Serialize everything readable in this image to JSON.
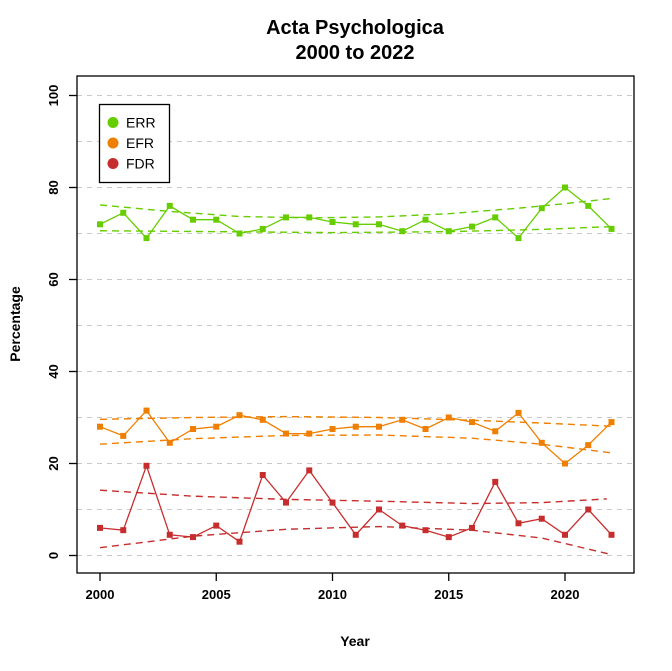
{
  "title": {
    "line1": "Acta Psychologica",
    "line2": "2000 to 2022"
  },
  "chart_data": {
    "type": "line",
    "xlabel": "Year",
    "ylabel": "Percentage",
    "x": [
      2000,
      2001,
      2002,
      2003,
      2004,
      2005,
      2006,
      2007,
      2008,
      2009,
      2010,
      2011,
      2012,
      2013,
      2014,
      2015,
      2016,
      2017,
      2018,
      2019,
      2020,
      2021,
      2022
    ],
    "xticks": [
      2000,
      2005,
      2010,
      2015,
      2020
    ],
    "yticks": [
      0,
      20,
      40,
      60,
      80,
      100
    ],
    "ylim": [
      0,
      100
    ],
    "grid": {
      "horizontal_every": 10,
      "style": "dashed",
      "color": "#c9c9c9"
    },
    "legend": {
      "position": "top-left",
      "entries": [
        "ERR",
        "EFR",
        "FDR"
      ]
    },
    "series": [
      {
        "name": "ERR",
        "color": "#66CD00",
        "marker": "square",
        "values": [
          72,
          74.5,
          69,
          76,
          73,
          73,
          70,
          71,
          73.5,
          73.5,
          72.5,
          72,
          72,
          70.5,
          73,
          70.5,
          71.5,
          73.5,
          69,
          75.5,
          80,
          76,
          71
        ],
        "trend_upper": [
          [
            2000,
            76.2
          ],
          [
            2003,
            74.8
          ],
          [
            2006,
            73.7
          ],
          [
            2009,
            73.4
          ],
          [
            2012,
            73.6
          ],
          [
            2015,
            74.3
          ],
          [
            2018,
            75.5
          ],
          [
            2020,
            76.5
          ],
          [
            2022,
            77.6
          ]
        ],
        "trend_lower": [
          [
            2000,
            70.6
          ],
          [
            2005,
            70.4
          ],
          [
            2010,
            70.2
          ],
          [
            2015,
            70.4
          ],
          [
            2019,
            70.9
          ],
          [
            2022,
            71.5
          ]
        ]
      },
      {
        "name": "EFR",
        "color": "#EE7F00",
        "marker": "square",
        "values": [
          28,
          26,
          31.5,
          24.5,
          27.5,
          28,
          30.5,
          29.5,
          26.5,
          26.5,
          27.5,
          28,
          28,
          29.5,
          27.5,
          30,
          29,
          27,
          31,
          24.5,
          20,
          24,
          29
        ],
        "trend_upper": [
          [
            2000,
            29.6
          ],
          [
            2004,
            30.0
          ],
          [
            2008,
            30.2
          ],
          [
            2012,
            30.0
          ],
          [
            2016,
            29.4
          ],
          [
            2019,
            28.8
          ],
          [
            2022,
            28.1
          ]
        ],
        "trend_lower": [
          [
            2000,
            24.2
          ],
          [
            2004,
            25.4
          ],
          [
            2008,
            26.1
          ],
          [
            2012,
            26.2
          ],
          [
            2016,
            25.5
          ],
          [
            2019,
            24.2
          ],
          [
            2022,
            22.3
          ]
        ]
      },
      {
        "name": "FDR",
        "color": "#C62E2E",
        "marker": "square",
        "values": [
          6,
          5.5,
          19.5,
          4.5,
          4,
          6.5,
          3,
          17.5,
          11.5,
          18.5,
          11.5,
          4.5,
          10,
          6.5,
          5.5,
          4,
          6,
          16,
          7,
          8,
          4.5,
          10,
          4.5
        ],
        "trend_upper": [
          [
            2000,
            14.2
          ],
          [
            2004,
            12.9
          ],
          [
            2008,
            12.2
          ],
          [
            2012,
            11.8
          ],
          [
            2016,
            11.3
          ],
          [
            2019,
            11.5
          ],
          [
            2021.8,
            12.3
          ]
        ],
        "trend_lower": [
          [
            2000,
            1.7
          ],
          [
            2004,
            4.2
          ],
          [
            2008,
            5.7
          ],
          [
            2012,
            6.3
          ],
          [
            2016,
            5.5
          ],
          [
            2019,
            3.8
          ],
          [
            2022,
            0.2
          ]
        ]
      }
    ]
  }
}
